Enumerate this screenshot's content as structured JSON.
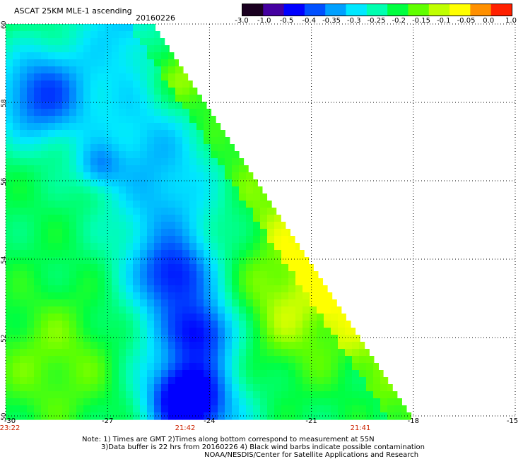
{
  "header": {
    "title": "ASCAT 25KM MLE-1 ascending",
    "date": "20160226"
  },
  "colorbar": {
    "labels": [
      "-3.0",
      "-1.0",
      "-0.5",
      "-0.4",
      "-0.35",
      "-0.3",
      "-0.25",
      "-0.2",
      "-0.15",
      "-0.1",
      "-0.05",
      "0.0",
      "1.0"
    ],
    "colors": [
      "#1a0020",
      "#4400a0",
      "#0000ff",
      "#0050ff",
      "#00a0ff",
      "#00e8ff",
      "#00ffb0",
      "#00ff40",
      "#60ff00",
      "#c0ff00",
      "#ffff00",
      "#ff9000",
      "#ff2000"
    ]
  },
  "axes": {
    "lat_ticks": [
      "60",
      "58",
      "56",
      "54",
      "52",
      "50"
    ],
    "lon_ticks": [
      "-30",
      "-27",
      "-24",
      "-21",
      "-18",
      "-15"
    ],
    "time_labels": [
      "23:22",
      "21:42",
      "21:41"
    ]
  },
  "map": {
    "lat_range": [
      50,
      60
    ],
    "lon_range": [
      -30,
      -15
    ],
    "swath_edge": [
      [
        -25.6,
        60
      ],
      [
        -18,
        50
      ]
    ]
  },
  "notes": {
    "line1": "Note: 1) Times are GMT 2)Times along bottom correspond to measurement at 55N",
    "line2": "3)Data buffer is 22 hrs from 20160226 4) Black wind barbs indicate possible contamination",
    "line3": "NOAA/NESDIS/Center for Satellite Applications and Research"
  }
}
